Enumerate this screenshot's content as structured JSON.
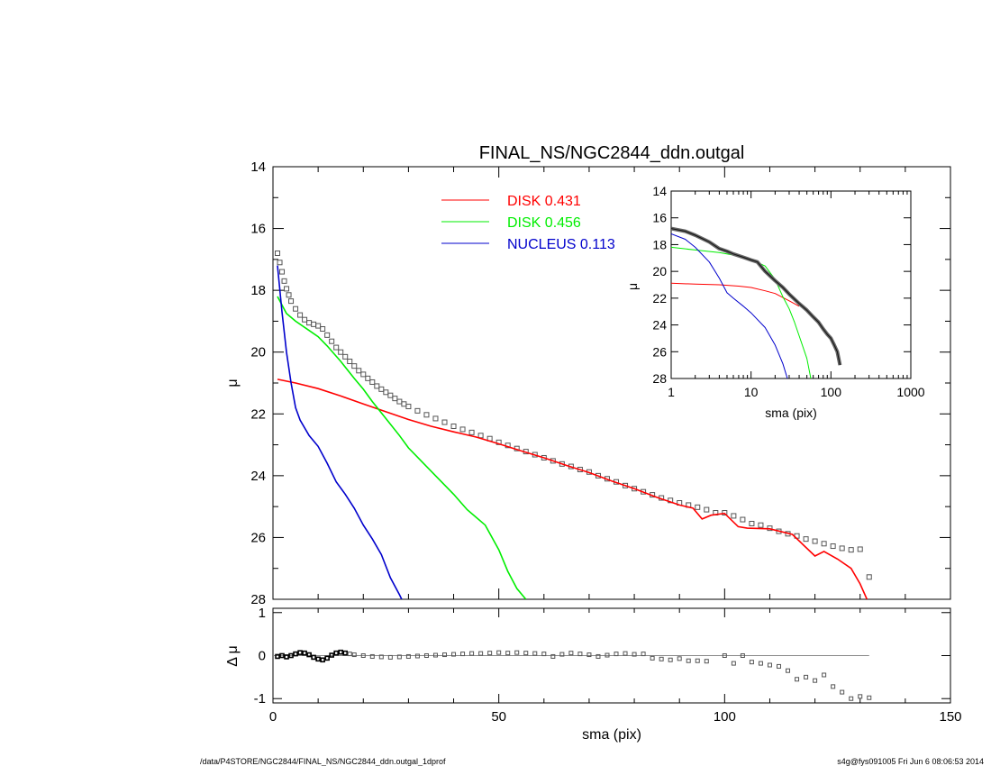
{
  "chart_data": [
    {
      "type": "line",
      "title": "FINAL_NS/NGC2844_ddn.outgal",
      "xlabel": "sma (pix)",
      "ylabel": "μ",
      "xlim": [
        0,
        150
      ],
      "ylim": [
        28,
        14
      ],
      "y_inverted": true,
      "yticks": [
        14,
        16,
        18,
        20,
        22,
        24,
        26,
        28
      ],
      "xticks": [
        0,
        50,
        100,
        150
      ],
      "grid": false,
      "legend_position": "top-center",
      "series": [
        {
          "name": "DISK",
          "label_value": "0.431",
          "color": "#ff0000",
          "x": [
            1,
            5,
            10,
            15,
            20,
            25,
            30,
            35,
            40,
            45,
            50,
            55,
            60,
            65,
            70,
            75,
            80,
            85,
            90,
            93,
            95,
            97,
            100,
            103,
            105,
            110,
            115,
            120,
            122,
            125,
            128,
            130,
            131.5
          ],
          "y": [
            20.88,
            21.0,
            21.18,
            21.42,
            21.68,
            21.93,
            22.18,
            22.4,
            22.58,
            22.75,
            22.97,
            23.2,
            23.42,
            23.67,
            23.9,
            24.17,
            24.42,
            24.7,
            24.95,
            25.05,
            25.4,
            25.28,
            25.22,
            25.65,
            25.7,
            25.72,
            25.9,
            26.6,
            26.45,
            26.7,
            27.0,
            27.5,
            28.0
          ]
        },
        {
          "name": "DISK",
          "label_value": "0.456",
          "color": "#00ee00",
          "x": [
            1,
            3,
            5,
            8,
            10,
            12,
            15,
            18,
            20,
            22,
            25,
            28,
            30,
            33,
            36,
            40,
            43,
            45,
            47,
            50,
            52,
            54,
            56
          ],
          "y": [
            18.2,
            18.75,
            19.0,
            19.3,
            19.5,
            19.8,
            20.3,
            20.85,
            21.2,
            21.6,
            22.15,
            22.7,
            23.1,
            23.55,
            24.0,
            24.6,
            25.1,
            25.35,
            25.6,
            26.4,
            27.1,
            27.65,
            28.0
          ]
        },
        {
          "name": "NUCLEUS",
          "label_value": "0.113",
          "color": "#0000cc",
          "x": [
            1,
            2,
            3,
            4,
            5,
            6,
            8,
            10,
            12,
            14,
            16,
            18,
            20,
            22,
            24,
            26,
            28,
            28.5
          ],
          "y": [
            17.2,
            18.7,
            20.0,
            21.0,
            21.8,
            22.2,
            22.7,
            23.05,
            23.6,
            24.2,
            24.6,
            25.05,
            25.6,
            26.05,
            26.55,
            27.3,
            27.85,
            28.0
          ]
        },
        {
          "name": "",
          "role": "observed profile",
          "color": "#555555",
          "x": [
            1,
            1.5,
            2,
            2.5,
            3,
            3.5,
            4,
            5,
            6,
            7,
            8,
            9,
            10,
            11,
            12,
            13,
            14,
            15,
            16,
            17,
            18,
            19,
            20,
            21,
            22,
            23,
            24,
            25,
            26,
            27,
            28,
            29,
            30,
            32,
            34,
            36,
            38,
            40,
            42,
            44,
            46,
            48,
            50,
            52,
            54,
            56,
            58,
            60,
            62,
            64,
            66,
            68,
            70,
            72,
            74,
            76,
            78,
            80,
            82,
            84,
            86,
            88,
            90,
            92,
            94,
            96,
            98,
            100,
            102,
            104,
            106,
            108,
            110,
            112,
            114,
            116,
            118,
            120,
            122,
            124,
            126,
            128,
            130,
            132
          ],
          "y": [
            16.8,
            17.1,
            17.4,
            17.7,
            17.95,
            18.15,
            18.35,
            18.6,
            18.8,
            18.95,
            19.05,
            19.1,
            19.15,
            19.25,
            19.45,
            19.65,
            19.85,
            20.0,
            20.15,
            20.3,
            20.45,
            20.6,
            20.72,
            20.85,
            20.97,
            21.1,
            21.2,
            21.3,
            21.4,
            21.5,
            21.6,
            21.68,
            21.76,
            21.9,
            22.03,
            22.15,
            22.27,
            22.4,
            22.5,
            22.6,
            22.7,
            22.8,
            22.92,
            23.02,
            23.12,
            23.22,
            23.32,
            23.42,
            23.52,
            23.62,
            23.7,
            23.8,
            23.88,
            24.0,
            24.1,
            24.2,
            24.32,
            24.42,
            24.52,
            24.62,
            24.72,
            24.8,
            24.88,
            24.95,
            25.02,
            25.1,
            25.2,
            25.2,
            25.3,
            25.42,
            25.55,
            25.6,
            25.7,
            25.8,
            25.88,
            25.95,
            26.05,
            26.12,
            26.2,
            26.28,
            26.35,
            26.4,
            26.38,
            27.28
          ]
        }
      ]
    },
    {
      "type": "scatter",
      "title": "",
      "xlabel": "",
      "ylabel": "Δ μ",
      "xlim": [
        0,
        150
      ],
      "ylim": [
        -1.1,
        1.1
      ],
      "yticks": [
        1,
        0,
        -1
      ],
      "grid": false,
      "reference_line_y": 0,
      "points": {
        "x": [
          1,
          2,
          3,
          4,
          5,
          6,
          7,
          8,
          9,
          10,
          11,
          12,
          13,
          14,
          15,
          16,
          17,
          18,
          20,
          22,
          24,
          26,
          28,
          30,
          32,
          34,
          36,
          38,
          40,
          42,
          44,
          46,
          48,
          50,
          52,
          54,
          56,
          58,
          60,
          62,
          64,
          66,
          68,
          70,
          72,
          74,
          76,
          78,
          80,
          82,
          84,
          86,
          88,
          90,
          92,
          94,
          96,
          100,
          102,
          104,
          106,
          108,
          110,
          112,
          114,
          116,
          118,
          120,
          122,
          124,
          126,
          128,
          130,
          132
        ],
        "y": [
          -0.02,
          0.0,
          -0.03,
          0.0,
          0.04,
          0.07,
          0.06,
          0.02,
          -0.04,
          -0.08,
          -0.1,
          -0.06,
          0.01,
          0.06,
          0.08,
          0.06,
          0.04,
          0.02,
          0.0,
          -0.02,
          -0.03,
          -0.04,
          -0.03,
          -0.02,
          -0.01,
          0.0,
          0.01,
          0.02,
          0.03,
          0.04,
          0.05,
          0.05,
          0.06,
          0.07,
          0.06,
          0.07,
          0.06,
          0.05,
          0.04,
          -0.02,
          0.03,
          0.06,
          0.04,
          0.02,
          -0.02,
          0.01,
          0.04,
          0.05,
          0.03,
          0.04,
          -0.06,
          -0.08,
          -0.1,
          -0.07,
          -0.12,
          -0.12,
          -0.13,
          0.0,
          -0.18,
          0.0,
          -0.15,
          -0.18,
          -0.22,
          -0.25,
          -0.35,
          -0.55,
          -0.5,
          -0.58,
          -0.45,
          -0.72,
          -0.85,
          -1.0,
          -0.95,
          -0.98
        ]
      }
    },
    {
      "type": "line",
      "title": "",
      "xlabel": "sma (pix)",
      "ylabel": "μ",
      "x_scale": "log",
      "xlim": [
        1,
        1000
      ],
      "ylim": [
        28,
        14
      ],
      "y_inverted": true,
      "yticks": [
        14,
        16,
        18,
        20,
        22,
        24,
        26,
        28
      ],
      "xticks": [
        "1",
        "10",
        "100",
        "1000"
      ],
      "grid": false,
      "series": [
        {
          "name": "",
          "color": "#ff0000",
          "x": [
            1,
            2,
            4,
            7,
            10,
            15,
            20,
            30,
            40
          ],
          "y": [
            20.88,
            20.95,
            21.0,
            21.1,
            21.2,
            21.45,
            21.65,
            22.2,
            22.6
          ]
        },
        {
          "name": "",
          "color": "#00ee00",
          "x": [
            1,
            2,
            4,
            7,
            10,
            15,
            20,
            25,
            30,
            35,
            40,
            50,
            56
          ],
          "y": [
            18.2,
            18.4,
            18.6,
            18.85,
            19.1,
            19.6,
            20.6,
            21.9,
            22.8,
            23.8,
            24.8,
            26.5,
            28.0
          ]
        },
        {
          "name": "",
          "color": "#0000cc",
          "x": [
            1,
            1.5,
            2,
            3,
            4,
            5,
            6,
            8,
            10,
            15,
            20,
            25,
            28.5
          ],
          "y": [
            17.2,
            17.6,
            18.2,
            19.3,
            20.5,
            21.6,
            22.0,
            22.6,
            23.1,
            24.2,
            25.5,
            26.9,
            28.0
          ]
        },
        {
          "name": "",
          "color": "#333333",
          "x": [
            1,
            1.5,
            2,
            3,
            4,
            5,
            6,
            8,
            10,
            12,
            15,
            20,
            25,
            30,
            40,
            50,
            60,
            70,
            80,
            90,
            100,
            110,
            120,
            130
          ],
          "y": [
            16.8,
            17.0,
            17.3,
            17.8,
            18.3,
            18.5,
            18.7,
            18.95,
            19.15,
            19.3,
            20.0,
            20.7,
            21.2,
            21.7,
            22.4,
            22.9,
            23.4,
            23.8,
            24.3,
            24.7,
            25.0,
            25.5,
            26.0,
            27.0
          ]
        }
      ]
    }
  ],
  "legend": [
    {
      "name": "DISK",
      "value": "0.431",
      "color": "#ff0000"
    },
    {
      "name": "DISK",
      "value": "0.456",
      "color": "#00ee00"
    },
    {
      "name": "NUCLEUS",
      "value": "0.113",
      "color": "#0000cc"
    }
  ],
  "footer": {
    "left": "/data/P4STORE/NGC2844/FINAL_NS/NGC2844_ddn.outgal_1dprof",
    "right": "s4g@fys091005  Fri Jun  6 08:06:53 2014"
  }
}
